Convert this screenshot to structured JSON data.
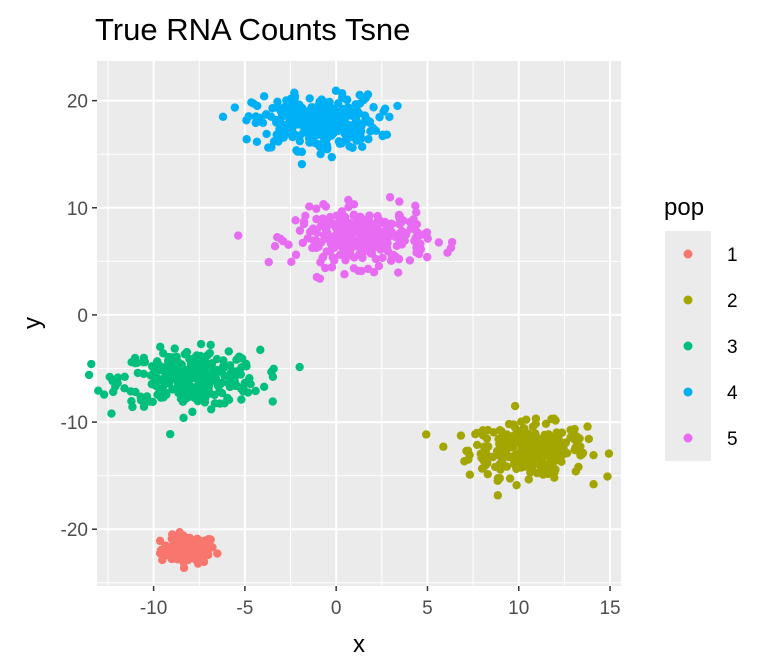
{
  "chart_data": {
    "type": "scatter",
    "title": "True RNA Counts Tsne",
    "xlabel": "x",
    "ylabel": "y",
    "xlim": [
      -13.1,
      15.6
    ],
    "ylim": [
      -25.3,
      23.7
    ],
    "x_ticks": [
      -10,
      -5,
      0,
      5,
      10,
      15
    ],
    "y_ticks": [
      -20,
      -10,
      0,
      10,
      20
    ],
    "x_tick_labels": [
      "-10",
      "-5",
      "0",
      "5",
      "10",
      "15"
    ],
    "y_tick_labels": [
      "-20",
      "-10",
      "0",
      "10",
      "20"
    ],
    "grid": true,
    "legend": {
      "title": "pop",
      "placement": "right"
    },
    "series": [
      {
        "name": "1",
        "color": "#F8766D",
        "cluster": {
          "cx": -8.1,
          "cy": -21.9,
          "sx": 0.75,
          "sy": 0.65,
          "n": 110
        }
      },
      {
        "name": "2",
        "color": "#A3A500",
        "cluster": {
          "cx": 10.5,
          "cy": -12.6,
          "sx": 1.6,
          "sy": 1.25,
          "n": 300
        }
      },
      {
        "name": "3",
        "color": "#00BF7D",
        "cluster": {
          "cx": -8.0,
          "cy": -5.9,
          "sx": 1.9,
          "sy": 1.3,
          "n": 300
        }
      },
      {
        "name": "4",
        "color": "#00B0F6",
        "cluster": {
          "cx": -1.1,
          "cy": 18.0,
          "sx": 1.7,
          "sy": 1.25,
          "n": 300
        }
      },
      {
        "name": "5",
        "color": "#E76BF3",
        "cluster": {
          "cx": 1.4,
          "cy": 7.2,
          "sx": 1.8,
          "sy": 1.3,
          "n": 300
        }
      }
    ]
  }
}
